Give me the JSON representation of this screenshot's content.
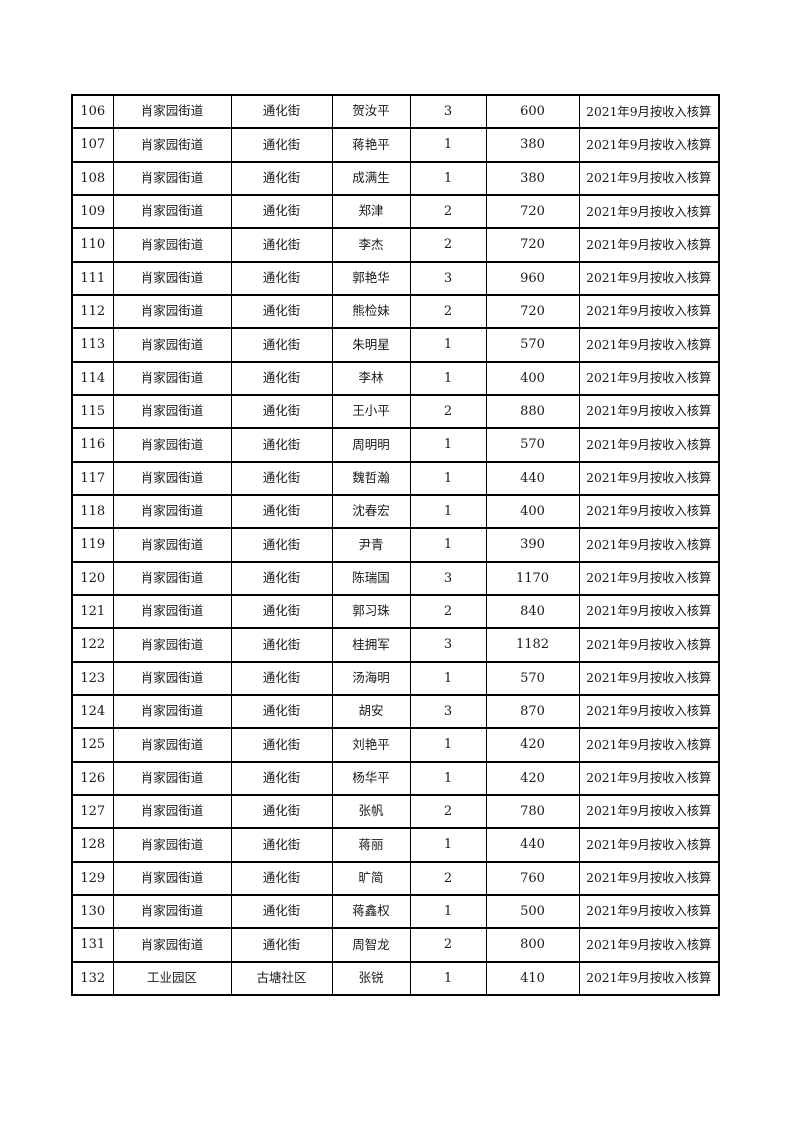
{
  "page": {
    "background_color": "#ffffff",
    "border_color": "#000000",
    "text_color": "#1a1a1a"
  },
  "table": {
    "remark_text": "2021年9月按收入核算",
    "rows": [
      [
        "106",
        "肖家园街道",
        "通化街",
        "贺汝平",
        "3",
        "600",
        "2021年9月按收入核算"
      ],
      [
        "107",
        "肖家园街道",
        "通化街",
        "蒋艳平",
        "1",
        "380",
        "2021年9月按收入核算"
      ],
      [
        "108",
        "肖家园街道",
        "通化街",
        "成满生",
        "1",
        "380",
        "2021年9月按收入核算"
      ],
      [
        "109",
        "肖家园街道",
        "通化街",
        "郑津",
        "2",
        "720",
        "2021年9月按收入核算"
      ],
      [
        "110",
        "肖家园街道",
        "通化街",
        "李杰",
        "2",
        "720",
        "2021年9月按收入核算"
      ],
      [
        "111",
        "肖家园街道",
        "通化街",
        "郭艳华",
        "3",
        "960",
        "2021年9月按收入核算"
      ],
      [
        "112",
        "肖家园街道",
        "通化街",
        "熊检妹",
        "2",
        "720",
        "2021年9月按收入核算"
      ],
      [
        "113",
        "肖家园街道",
        "通化街",
        "朱明星",
        "1",
        "570",
        "2021年9月按收入核算"
      ],
      [
        "114",
        "肖家园街道",
        "通化街",
        "李林",
        "1",
        "400",
        "2021年9月按收入核算"
      ],
      [
        "115",
        "肖家园街道",
        "通化街",
        "王小平",
        "2",
        "880",
        "2021年9月按收入核算"
      ],
      [
        "116",
        "肖家园街道",
        "通化街",
        "周明明",
        "1",
        "570",
        "2021年9月按收入核算"
      ],
      [
        "117",
        "肖家园街道",
        "通化街",
        "魏哲瀚",
        "1",
        "440",
        "2021年9月按收入核算"
      ],
      [
        "118",
        "肖家园街道",
        "通化街",
        "沈春宏",
        "1",
        "400",
        "2021年9月按收入核算"
      ],
      [
        "119",
        "肖家园街道",
        "通化街",
        "尹青",
        "1",
        "390",
        "2021年9月按收入核算"
      ],
      [
        "120",
        "肖家园街道",
        "通化街",
        "陈瑞国",
        "3",
        "1170",
        "2021年9月按收入核算"
      ],
      [
        "121",
        "肖家园街道",
        "通化街",
        "郭习珠",
        "2",
        "840",
        "2021年9月按收入核算"
      ],
      [
        "122",
        "肖家园街道",
        "通化街",
        "桂拥军",
        "3",
        "1182",
        "2021年9月按收入核算"
      ],
      [
        "123",
        "肖家园街道",
        "通化街",
        "汤海明",
        "1",
        "570",
        "2021年9月按收入核算"
      ],
      [
        "124",
        "肖家园街道",
        "通化街",
        "胡安",
        "3",
        "870",
        "2021年9月按收入核算"
      ],
      [
        "125",
        "肖家园街道",
        "通化街",
        "刘艳平",
        "1",
        "420",
        "2021年9月按收入核算"
      ],
      [
        "126",
        "肖家园街道",
        "通化街",
        "杨华平",
        "1",
        "420",
        "2021年9月按收入核算"
      ],
      [
        "127",
        "肖家园街道",
        "通化街",
        "张帆",
        "2",
        "780",
        "2021年9月按收入核算"
      ],
      [
        "128",
        "肖家园街道",
        "通化街",
        "蒋丽",
        "1",
        "440",
        "2021年9月按收入核算"
      ],
      [
        "129",
        "肖家园街道",
        "通化街",
        "旷简",
        "2",
        "760",
        "2021年9月按收入核算"
      ],
      [
        "130",
        "肖家园街道",
        "通化街",
        "蒋鑫权",
        "1",
        "500",
        "2021年9月按收入核算"
      ],
      [
        "131",
        "肖家园街道",
        "通化街",
        "周智龙",
        "2",
        "800",
        "2021年9月按收入核算"
      ],
      [
        "132",
        "工业园区",
        "古塘社区",
        "张锐",
        "1",
        "410",
        "2021年9月按收入核算"
      ]
    ]
  }
}
